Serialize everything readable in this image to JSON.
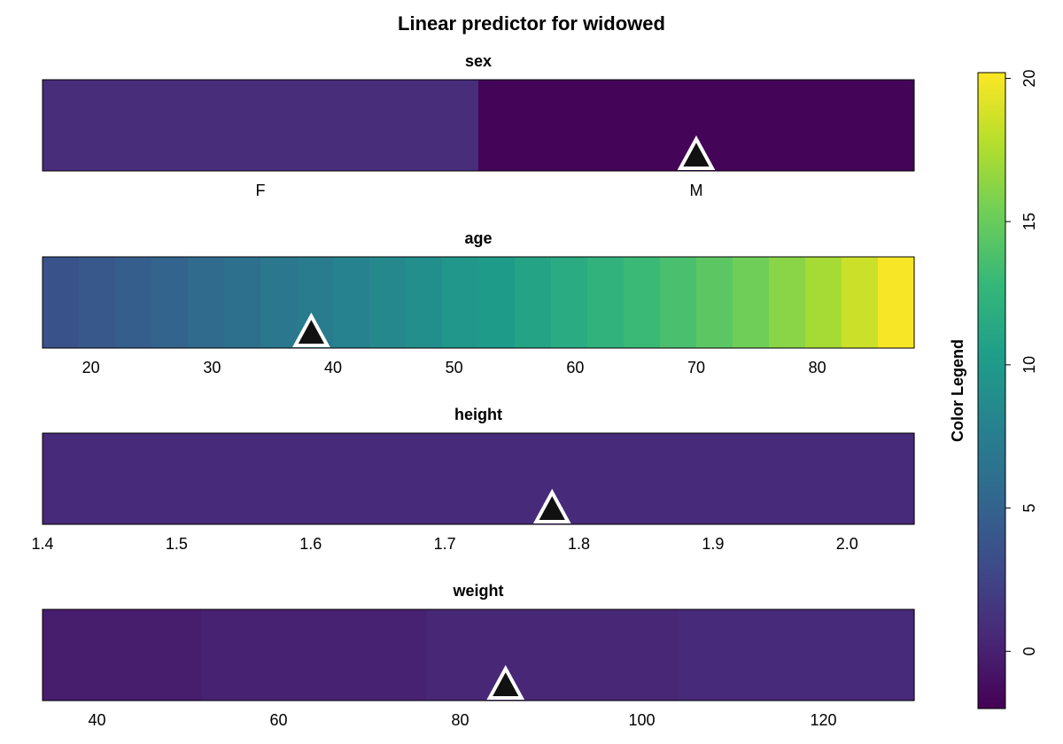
{
  "title": "Linear predictor for widowed",
  "legend": {
    "title": "Color Legend",
    "min": -2.0,
    "max": 20.2,
    "ticks": [
      0,
      5,
      10,
      15,
      20
    ],
    "tick_labels": [
      "0",
      "5",
      "10",
      "15",
      "20"
    ],
    "colormap": "viridis"
  },
  "chart_data": {
    "type": "heatmap",
    "title": "Linear predictor for widowed",
    "legend_title": "Color Legend",
    "colorbar_range": [
      -2.0,
      20.2
    ],
    "panels": [
      {
        "name": "sex",
        "title": "sex",
        "kind": "categorical",
        "categories": [
          "F",
          "M"
        ],
        "values": [
          0.8,
          -1.8
        ],
        "marker": "M"
      },
      {
        "name": "age",
        "title": "age",
        "kind": "numeric",
        "xlim": [
          16,
          88
        ],
        "ticks": [
          20,
          30,
          40,
          50,
          60,
          70,
          80
        ],
        "tick_labels": [
          "20",
          "30",
          "40",
          "50",
          "60",
          "70",
          "80"
        ],
        "x": [
          17.5,
          20.5,
          23.5,
          26.5,
          29.5,
          32.5,
          35.5,
          38.5,
          41.5,
          44.5,
          47.5,
          50.5,
          53.5,
          56.5,
          59.5,
          62.5,
          65.5,
          68.5,
          71.5,
          74.5,
          77.5,
          80.5,
          83.5,
          86.5
        ],
        "values": [
          3.6,
          4.1,
          4.6,
          5.1,
          5.7,
          6.2,
          6.8,
          7.3,
          7.9,
          8.4,
          9.0,
          9.6,
          10.2,
          10.9,
          11.6,
          12.3,
          13.0,
          13.7,
          14.5,
          15.3,
          16.2,
          17.2,
          18.5,
          20.0
        ],
        "marker": 38.2
      },
      {
        "name": "height",
        "title": "height",
        "kind": "numeric",
        "xlim": [
          1.4,
          2.05
        ],
        "ticks": [
          1.4,
          1.5,
          1.6,
          1.7,
          1.8,
          1.9,
          2.0
        ],
        "tick_labels": [
          "1.4",
          "1.5",
          "1.6",
          "1.7",
          "1.8",
          "1.9",
          "2.0"
        ],
        "x": [
          1.725
        ],
        "values": [
          0.6
        ],
        "marker": 1.78
      },
      {
        "name": "weight",
        "title": "weight",
        "kind": "numeric",
        "xlim": [
          34,
          130
        ],
        "ticks": [
          40,
          60,
          80,
          100,
          120
        ],
        "tick_labels": [
          "40",
          "60",
          "80",
          "100",
          "120"
        ],
        "x": [
          41,
          62,
          90.5,
          117.5
        ],
        "values": [
          -0.2,
          0.1,
          0.4,
          0.6
        ],
        "marker": 85
      }
    ]
  }
}
